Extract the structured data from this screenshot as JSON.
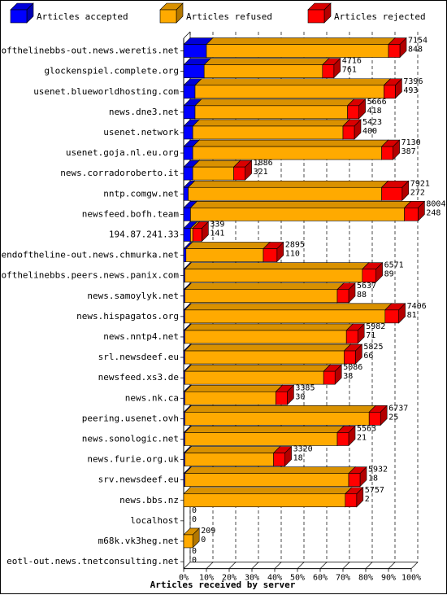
{
  "chart_data": {
    "type": "bar",
    "orientation": "horizontal",
    "stacked": true,
    "xlabel": "Articles received by server",
    "ylabel": "",
    "xlim": [
      0,
      100
    ],
    "x_ticks": [
      "0%",
      "10%",
      "20%",
      "30%",
      "40%",
      "50%",
      "60%",
      "70%",
      "80%",
      "90%",
      "100%"
    ],
    "grid": true,
    "legend": "top",
    "colors": {
      "accepted": "#0000ff",
      "refused": "#ffaa00",
      "rejected": "#ff0000"
    },
    "series": [
      {
        "key": "accepted",
        "name": "Articles accepted"
      },
      {
        "key": "refused",
        "name": "Articles refused"
      },
      {
        "key": "rejected",
        "name": "Articles rejected"
      }
    ],
    "categories": [
      "endofthelinebbs-out.news.weretis.net",
      "glockenspiel.complete.org",
      "usenet.blueworldhosting.com",
      "news.dne3.net",
      "usenet.network",
      "usenet.goja.nl.eu.org",
      "news.corradoroberto.it",
      "nntp.comgw.net",
      "newsfeed.bofh.team",
      "194.87.241.33",
      "endoftheline-out.news.chmurka.net",
      "endofthelinebbs.peers.news.panix.com",
      "news.samoylyk.net",
      "news.hispagatos.org",
      "news.nntp4.net",
      "srl.newsdeef.eu",
      "newsfeed.xs3.de",
      "news.nk.ca",
      "peering.usenet.ovh",
      "news.sonologic.net",
      "news.furie.org.uk",
      "srv.newsdeef.eu",
      "news.bbs.nz",
      "localhost",
      "m68k.vk3heg.net",
      "eotl-out.news.tnetconsulting.net"
    ],
    "percent": {
      "accepted": [
        10,
        9,
        5,
        5,
        4,
        4,
        4,
        2,
        3,
        3,
        1,
        0.5,
        0.5,
        0.5,
        0.5,
        0.5,
        0.5,
        0.5,
        0.5,
        0.5,
        0.5,
        0.5,
        0,
        0,
        0,
        0
      ],
      "refused": [
        80,
        52,
        83,
        67,
        66,
        83,
        18,
        85,
        94,
        1,
        34,
        78,
        67,
        88,
        71,
        70,
        61,
        40,
        81,
        67,
        39,
        72,
        71,
        0,
        4,
        0
      ],
      "rejected": [
        5,
        5,
        5,
        5,
        5,
        5,
        5,
        9,
        6,
        4,
        6,
        6,
        5,
        6,
        5,
        5,
        5,
        5,
        5,
        5,
        5,
        5,
        5,
        0,
        0,
        0
      ]
    },
    "total_labels": [
      "7154",
      "4716",
      "7396",
      "5666",
      "5423",
      "7130",
      "1886",
      "7921",
      "8004",
      "339",
      "2895",
      "6571",
      "5637",
      "7406",
      "5982",
      "5825",
      "5086",
      "3385",
      "6737",
      "5563",
      "3320",
      "5932",
      "5757",
      "0",
      "209",
      "0"
    ],
    "second_labels": [
      "848",
      "761",
      "493",
      "418",
      "400",
      "387",
      "321",
      "272",
      "248",
      "141",
      "110",
      "89",
      "88",
      "81",
      "71",
      "66",
      "38",
      "30",
      "25",
      "21",
      "18",
      "18",
      "2",
      "0",
      "0",
      "0"
    ]
  }
}
